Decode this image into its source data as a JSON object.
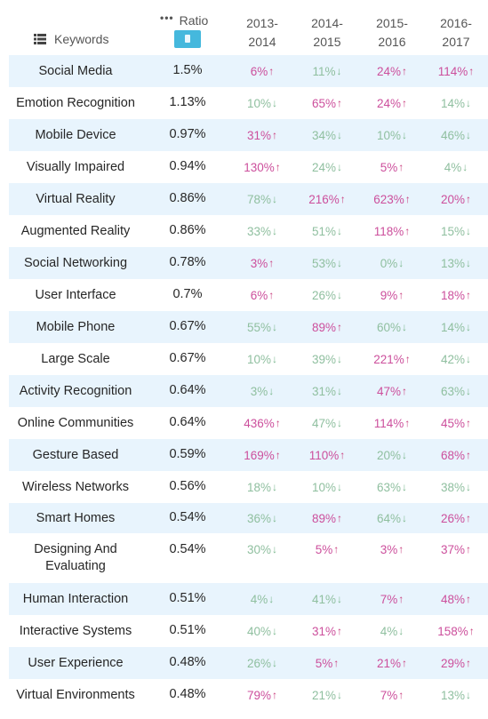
{
  "header": {
    "keywords_label": "Keywords",
    "ratio_label": "Ratio",
    "years": [
      "2013-\n2014",
      "2014-\n2015",
      "2015-\n2016",
      "2016-\n2017"
    ]
  },
  "colors": {
    "odd_row": "#e8f4fd",
    "up": "#cc4f9c",
    "down": "#8fbf9f",
    "ratio_button": "#45b8dd"
  },
  "rows": [
    {
      "keyword": "Social Media",
      "ratio": "1.5%",
      "cells": [
        {
          "v": "6%",
          "d": "up"
        },
        {
          "v": "11%",
          "d": "down"
        },
        {
          "v": "24%",
          "d": "up"
        },
        {
          "v": "114%",
          "d": "up"
        }
      ]
    },
    {
      "keyword": "Emotion Recognition",
      "ratio": "1.13%",
      "cells": [
        {
          "v": "10%",
          "d": "down"
        },
        {
          "v": "65%",
          "d": "up"
        },
        {
          "v": "24%",
          "d": "up"
        },
        {
          "v": "14%",
          "d": "down"
        }
      ]
    },
    {
      "keyword": "Mobile Device",
      "ratio": "0.97%",
      "cells": [
        {
          "v": "31%",
          "d": "up"
        },
        {
          "v": "34%",
          "d": "down"
        },
        {
          "v": "10%",
          "d": "down"
        },
        {
          "v": "46%",
          "d": "down"
        }
      ]
    },
    {
      "keyword": "Visually Impaired",
      "ratio": "0.94%",
      "cells": [
        {
          "v": "130%",
          "d": "up"
        },
        {
          "v": "24%",
          "d": "down"
        },
        {
          "v": "5%",
          "d": "up"
        },
        {
          "v": "4%",
          "d": "down"
        }
      ]
    },
    {
      "keyword": "Virtual Reality",
      "ratio": "0.86%",
      "cells": [
        {
          "v": "78%",
          "d": "down"
        },
        {
          "v": "216%",
          "d": "up"
        },
        {
          "v": "623%",
          "d": "up"
        },
        {
          "v": "20%",
          "d": "up"
        }
      ]
    },
    {
      "keyword": "Augmented Reality",
      "ratio": "0.86%",
      "cells": [
        {
          "v": "33%",
          "d": "down"
        },
        {
          "v": "51%",
          "d": "down"
        },
        {
          "v": "118%",
          "d": "up"
        },
        {
          "v": "15%",
          "d": "down"
        }
      ]
    },
    {
      "keyword": "Social Networking",
      "ratio": "0.78%",
      "cells": [
        {
          "v": "3%",
          "d": "up"
        },
        {
          "v": "53%",
          "d": "down"
        },
        {
          "v": "0%",
          "d": "down"
        },
        {
          "v": "13%",
          "d": "down"
        }
      ]
    },
    {
      "keyword": "User Interface",
      "ratio": "0.7%",
      "cells": [
        {
          "v": "6%",
          "d": "up"
        },
        {
          "v": "26%",
          "d": "down"
        },
        {
          "v": "9%",
          "d": "up"
        },
        {
          "v": "18%",
          "d": "up"
        }
      ]
    },
    {
      "keyword": "Mobile Phone",
      "ratio": "0.67%",
      "cells": [
        {
          "v": "55%",
          "d": "down"
        },
        {
          "v": "89%",
          "d": "up"
        },
        {
          "v": "60%",
          "d": "down"
        },
        {
          "v": "14%",
          "d": "down"
        }
      ]
    },
    {
      "keyword": "Large Scale",
      "ratio": "0.67%",
      "cells": [
        {
          "v": "10%",
          "d": "down"
        },
        {
          "v": "39%",
          "d": "down"
        },
        {
          "v": "221%",
          "d": "up"
        },
        {
          "v": "42%",
          "d": "down"
        }
      ]
    },
    {
      "keyword": "Activity Recognition",
      "ratio": "0.64%",
      "cells": [
        {
          "v": "3%",
          "d": "down"
        },
        {
          "v": "31%",
          "d": "down"
        },
        {
          "v": "47%",
          "d": "up"
        },
        {
          "v": "63%",
          "d": "down"
        }
      ]
    },
    {
      "keyword": "Online Communities",
      "ratio": "0.64%",
      "cells": [
        {
          "v": "436%",
          "d": "up"
        },
        {
          "v": "47%",
          "d": "down"
        },
        {
          "v": "114%",
          "d": "up"
        },
        {
          "v": "45%",
          "d": "up"
        }
      ]
    },
    {
      "keyword": "Gesture Based",
      "ratio": "0.59%",
      "cells": [
        {
          "v": "169%",
          "d": "up"
        },
        {
          "v": "110%",
          "d": "up"
        },
        {
          "v": "20%",
          "d": "down"
        },
        {
          "v": "68%",
          "d": "up"
        }
      ]
    },
    {
      "keyword": "Wireless Networks",
      "ratio": "0.56%",
      "cells": [
        {
          "v": "18%",
          "d": "down"
        },
        {
          "v": "10%",
          "d": "down"
        },
        {
          "v": "63%",
          "d": "down"
        },
        {
          "v": "38%",
          "d": "down"
        }
      ]
    },
    {
      "keyword": "Smart Homes",
      "ratio": "0.54%",
      "cells": [
        {
          "v": "36%",
          "d": "down"
        },
        {
          "v": "89%",
          "d": "up"
        },
        {
          "v": "64%",
          "d": "down"
        },
        {
          "v": "26%",
          "d": "up"
        }
      ]
    },
    {
      "keyword": "Designing And Evaluating",
      "ratio": "0.54%",
      "cells": [
        {
          "v": "30%",
          "d": "down"
        },
        {
          "v": "5%",
          "d": "up"
        },
        {
          "v": "3%",
          "d": "up"
        },
        {
          "v": "37%",
          "d": "up"
        }
      ]
    },
    {
      "keyword": "Human Interaction",
      "ratio": "0.51%",
      "cells": [
        {
          "v": "4%",
          "d": "down"
        },
        {
          "v": "41%",
          "d": "down"
        },
        {
          "v": "7%",
          "d": "up"
        },
        {
          "v": "48%",
          "d": "up"
        }
      ]
    },
    {
      "keyword": "Interactive Systems",
      "ratio": "0.51%",
      "cells": [
        {
          "v": "40%",
          "d": "down"
        },
        {
          "v": "31%",
          "d": "up"
        },
        {
          "v": "4%",
          "d": "down"
        },
        {
          "v": "158%",
          "d": "up"
        }
      ]
    },
    {
      "keyword": "User Experience",
      "ratio": "0.48%",
      "cells": [
        {
          "v": "26%",
          "d": "down"
        },
        {
          "v": "5%",
          "d": "up"
        },
        {
          "v": "21%",
          "d": "up"
        },
        {
          "v": "29%",
          "d": "up"
        }
      ]
    },
    {
      "keyword": "Virtual Environments",
      "ratio": "0.48%",
      "cells": [
        {
          "v": "79%",
          "d": "up"
        },
        {
          "v": "21%",
          "d": "down"
        },
        {
          "v": "7%",
          "d": "up"
        },
        {
          "v": "13%",
          "d": "down"
        }
      ]
    }
  ]
}
